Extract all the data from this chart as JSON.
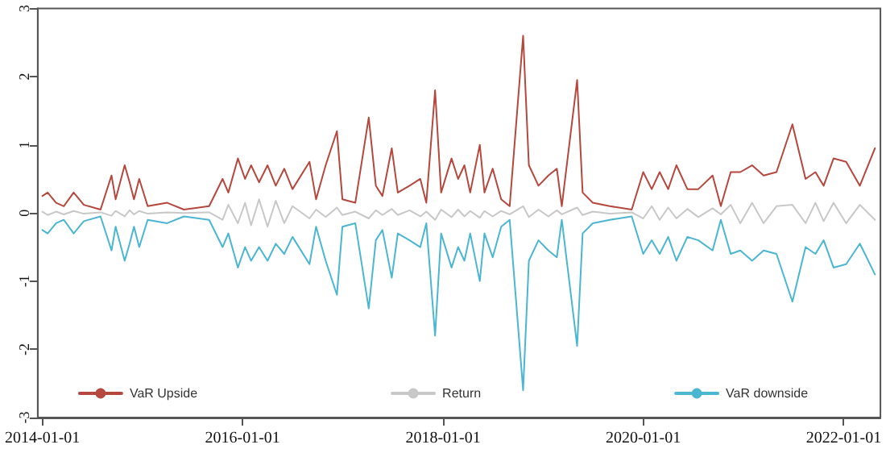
{
  "chart_data": {
    "type": "line",
    "x": [
      "2014-01-01",
      "2014-01-20",
      "2014-02-20",
      "2014-03-20",
      "2014-04-25",
      "2014-06-01",
      "2014-08-01",
      "2014-09-10",
      "2014-09-25",
      "2014-10-28",
      "2014-11-15",
      "2014-12-01",
      "2014-12-20",
      "2015-01-20",
      "2015-04-01",
      "2015-06-01",
      "2015-09-01",
      "2015-10-20",
      "2015-11-10",
      "2015-12-15",
      "2016-01-10",
      "2016-02-01",
      "2016-03-01",
      "2016-04-01",
      "2016-05-01",
      "2016-06-01",
      "2016-07-01",
      "2016-09-01",
      "2016-09-25",
      "2016-10-30",
      "2016-12-10",
      "2016-12-30",
      "2017-02-15",
      "2017-04-05",
      "2017-05-01",
      "2017-05-25",
      "2017-06-28",
      "2017-07-20",
      "2017-09-01",
      "2017-10-10",
      "2017-11-01",
      "2017-12-03",
      "2017-12-25",
      "2018-02-01",
      "2018-02-25",
      "2018-03-20",
      "2018-04-10",
      "2018-05-15",
      "2018-06-01",
      "2018-07-01",
      "2018-08-01",
      "2018-09-01",
      "2018-10-20",
      "2018-11-10",
      "2018-12-15",
      "2019-01-20",
      "2019-02-20",
      "2019-03-10",
      "2019-05-05",
      "2019-05-25",
      "2019-07-01",
      "2019-09-01",
      "2019-11-20",
      "2020-01-01",
      "2020-02-01",
      "2020-03-01",
      "2020-04-01",
      "2020-05-01",
      "2020-06-10",
      "2020-07-20",
      "2020-09-10",
      "2020-10-10",
      "2020-11-15",
      "2020-12-20",
      "2021-02-01",
      "2021-03-15",
      "2021-05-01",
      "2021-06-28",
      "2021-08-15",
      "2021-09-20",
      "2021-10-20",
      "2021-11-25",
      "2022-01-10",
      "2022-03-01",
      "2022-04-25"
    ],
    "series": [
      {
        "name": "VaR Upside",
        "color": "#b5473d",
        "values": [
          0.25,
          0.3,
          0.15,
          0.1,
          0.3,
          0.12,
          0.05,
          0.55,
          0.2,
          0.7,
          0.45,
          0.2,
          0.5,
          0.1,
          0.15,
          0.05,
          0.1,
          0.5,
          0.3,
          0.8,
          0.5,
          0.7,
          0.45,
          0.7,
          0.4,
          0.65,
          0.35,
          0.75,
          0.2,
          0.7,
          1.2,
          0.2,
          0.15,
          1.4,
          0.4,
          0.25,
          0.95,
          0.3,
          0.4,
          0.5,
          0.15,
          1.8,
          0.3,
          0.8,
          0.5,
          0.7,
          0.3,
          1.0,
          0.3,
          0.65,
          0.2,
          0.1,
          2.6,
          0.7,
          0.4,
          0.55,
          0.65,
          0.1,
          1.95,
          0.3,
          0.15,
          0.1,
          0.05,
          0.6,
          0.35,
          0.6,
          0.35,
          0.7,
          0.35,
          0.35,
          0.55,
          0.1,
          0.6,
          0.6,
          0.7,
          0.55,
          0.6,
          1.3,
          0.5,
          0.6,
          0.4,
          0.8,
          0.75,
          0.4,
          0.95
        ]
      },
      {
        "name": "Return",
        "color": "#c8c8c8",
        "values": [
          0.02,
          -0.03,
          0.02,
          -0.02,
          0.03,
          -0.01,
          0.01,
          -0.04,
          0.03,
          -0.05,
          0.04,
          -0.02,
          0.03,
          -0.01,
          0.01,
          0.0,
          0.01,
          -0.1,
          0.12,
          -0.15,
          0.15,
          -0.18,
          0.2,
          -0.2,
          0.18,
          -0.15,
          0.1,
          -0.08,
          0.05,
          -0.06,
          0.08,
          -0.03,
          0.02,
          -0.08,
          0.04,
          -0.03,
          0.06,
          -0.03,
          0.04,
          -0.05,
          0.02,
          -0.1,
          0.05,
          -0.06,
          0.05,
          -0.05,
          0.03,
          -0.07,
          0.03,
          -0.05,
          0.03,
          -0.02,
          0.1,
          -0.06,
          0.05,
          -0.05,
          0.04,
          -0.02,
          0.08,
          -0.03,
          0.02,
          -0.01,
          0.01,
          -0.08,
          0.1,
          -0.1,
          0.08,
          -0.08,
          0.06,
          -0.06,
          0.07,
          -0.02,
          0.12,
          -0.15,
          0.15,
          -0.15,
          0.1,
          0.12,
          -0.15,
          0.15,
          -0.12,
          0.15,
          -0.15,
          0.12,
          -0.1
        ]
      },
      {
        "name": "VaR downside",
        "color": "#4bb6d2",
        "values": [
          -0.25,
          -0.3,
          -0.15,
          -0.1,
          -0.3,
          -0.12,
          -0.05,
          -0.55,
          -0.2,
          -0.7,
          -0.45,
          -0.2,
          -0.5,
          -0.1,
          -0.15,
          -0.05,
          -0.1,
          -0.5,
          -0.3,
          -0.8,
          -0.5,
          -0.7,
          -0.5,
          -0.7,
          -0.45,
          -0.6,
          -0.35,
          -0.75,
          -0.2,
          -0.7,
          -1.2,
          -0.2,
          -0.15,
          -1.4,
          -0.4,
          -0.25,
          -0.95,
          -0.3,
          -0.4,
          -0.5,
          -0.15,
          -1.8,
          -0.3,
          -0.8,
          -0.5,
          -0.7,
          -0.3,
          -1.0,
          -0.3,
          -0.65,
          -0.2,
          -0.1,
          -2.6,
          -0.7,
          -0.4,
          -0.55,
          -0.65,
          -0.1,
          -1.95,
          -0.3,
          -0.15,
          -0.1,
          -0.05,
          -0.6,
          -0.4,
          -0.6,
          -0.35,
          -0.7,
          -0.35,
          -0.4,
          -0.55,
          -0.1,
          -0.6,
          -0.55,
          -0.7,
          -0.55,
          -0.6,
          -1.3,
          -0.5,
          -0.6,
          -0.4,
          -0.8,
          -0.75,
          -0.45,
          -0.9
        ]
      }
    ],
    "xlim": [
      "2013-12-15",
      "2022-05-15"
    ],
    "xticks": [
      "2014-01-01",
      "2016-01-01",
      "2018-01-01",
      "2020-01-01",
      "2022-01-01"
    ],
    "ylim": [
      -3,
      3
    ],
    "yticks": [
      -3,
      -2,
      -1,
      0,
      1,
      2,
      3
    ],
    "grid": false,
    "legend": "bottom",
    "marker": "none",
    "line_style": "solid"
  }
}
